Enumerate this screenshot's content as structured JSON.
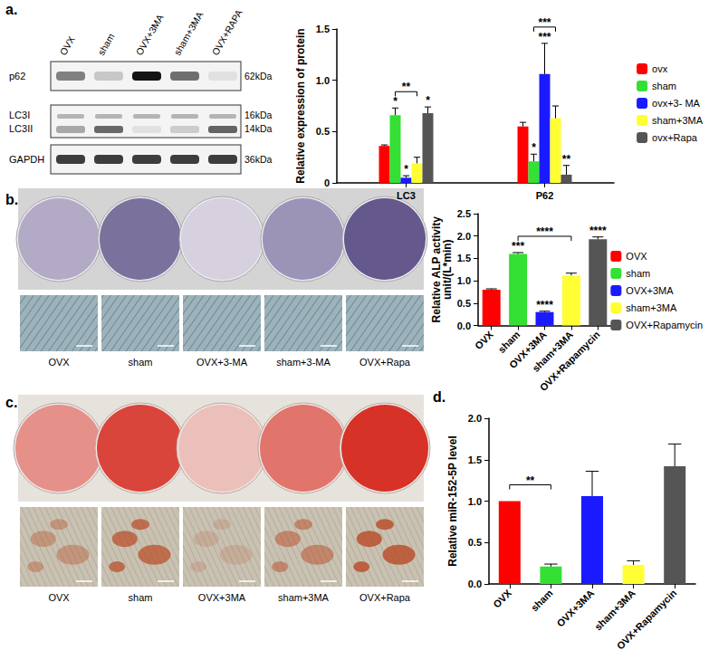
{
  "figure": {
    "panel_labels": [
      "a.",
      "b.",
      "c.",
      "d."
    ],
    "blot": {
      "lanes": [
        "OVX",
        "sham",
        "OVX+3MA",
        "sham+3MA",
        "OVX+RAPA"
      ],
      "rows": [
        {
          "label": "p62",
          "kda": "62kDa"
        },
        {
          "label": "LC3I",
          "kda": "16kDa"
        },
        {
          "label": "LC3II",
          "kda": "14kDa"
        },
        {
          "label": "GAPDH",
          "kda": "36kDa"
        }
      ]
    },
    "alp_photos": {
      "captions": [
        "OVX",
        "sham",
        "OVX+3-MA",
        "sham+3-MA",
        "OVX+Rapa"
      ]
    },
    "ars_photos": {
      "captions": [
        "OVX",
        "sham",
        "OVX+3MA",
        "sham+3MA",
        "OVX+Rapa"
      ]
    }
  },
  "chart_data": [
    {
      "type": "bar",
      "categories": [
        "LC3",
        "P62"
      ],
      "ylabel": "Relative expression of protein",
      "ylim": [
        0,
        1.5
      ],
      "yticks": [
        0,
        0.5,
        {
          "value": 1,
          "label": "1.0"
        },
        1.5
      ],
      "grid": false,
      "legend": "right",
      "series": [
        {
          "name": "ovx",
          "color": "#ff0000",
          "values": [
            0.36,
            0.55
          ],
          "errors": [
            0.01,
            0.04
          ]
        },
        {
          "name": "sham",
          "color": "#33e033",
          "values": [
            0.66,
            0.21
          ],
          "errors": [
            0.07,
            0.07
          ]
        },
        {
          "name": "ovx+3- MA",
          "color": "#1a1aff",
          "values": [
            0.05,
            1.06
          ],
          "errors": [
            0.02,
            0.3
          ]
        },
        {
          "name": "sham+3MA",
          "color": "#ffff33",
          "values": [
            0.19,
            0.63
          ],
          "errors": [
            0.06,
            0.12
          ]
        },
        {
          "name": "ovx+Rapa",
          "color": "#555555",
          "values": [
            0.68,
            0.08
          ],
          "errors": [
            0.06,
            0.09
          ]
        }
      ],
      "annotations": [
        {
          "text": "*",
          "category": "LC3",
          "series": "sham"
        },
        {
          "text": "*",
          "category": "LC3",
          "series": "ovx+3- MA"
        },
        {
          "text": "*",
          "category": "LC3",
          "series": "ovx+Rapa"
        },
        {
          "text": "**",
          "category": "LC3",
          "from": "sham",
          "to": "sham+3MA"
        },
        {
          "text": "*",
          "category": "P62",
          "series": "sham"
        },
        {
          "text": "***",
          "category": "P62",
          "series": "ovx+3- MA"
        },
        {
          "text": "**",
          "category": "P62",
          "series": "ovx+Rapa"
        },
        {
          "text": "***",
          "category": "P62",
          "from": "sham",
          "to": "sham+3MA"
        }
      ]
    },
    {
      "type": "bar",
      "categories": [
        "OVX",
        "sham",
        "OVX+3MA",
        "sham+3MA",
        "OVX+Rapamycin"
      ],
      "values": [
        0.8,
        1.6,
        0.3,
        1.12,
        1.93
      ],
      "errors": [
        0.02,
        0.03,
        0.02,
        0.05,
        0.05
      ],
      "colors": [
        "#ff0000",
        "#33e033",
        "#1a1aff",
        "#ffff33",
        "#555555"
      ],
      "ylabel": "Relative ALP activity\nunit/(L*min)",
      "ylim": [
        0,
        2.5
      ],
      "yticks": [
        {
          "value": 0,
          "label": "0.0"
        },
        0.5,
        {
          "value": 1,
          "label": "1.0"
        },
        1.5,
        {
          "value": 2,
          "label": "2.0"
        },
        2.5
      ],
      "grid": false,
      "legend": "right",
      "annotations": [
        {
          "text": "***",
          "category": "sham"
        },
        {
          "text": "****",
          "category": "OVX+3MA"
        },
        {
          "text": "****",
          "category": "OVX+Rapamycin"
        },
        {
          "text": "****",
          "from": "sham",
          "to": "sham+3MA"
        }
      ]
    },
    {
      "type": "bar",
      "categories": [
        "OVX",
        "sham",
        "OVX+3MA",
        "sham+3MA",
        "OVX+Rapamycin"
      ],
      "values": [
        1.0,
        0.21,
        1.06,
        0.23,
        1.42
      ],
      "errors": [
        0,
        0.03,
        0.3,
        0.05,
        0.27
      ],
      "colors": [
        "#ff0000",
        "#33e033",
        "#1a1aff",
        "#ffff33",
        "#555555"
      ],
      "ylabel": "Relative miR-152-5P level",
      "ylim": [
        0,
        2
      ],
      "yticks": [
        {
          "value": 0,
          "label": "0.0"
        },
        0.5,
        {
          "value": 1,
          "label": "1.0"
        },
        1.5,
        {
          "value": 2,
          "label": "2.0"
        }
      ],
      "grid": false,
      "annotations": [
        {
          "text": "**",
          "from": "OVX",
          "to": "sham"
        }
      ]
    }
  ]
}
